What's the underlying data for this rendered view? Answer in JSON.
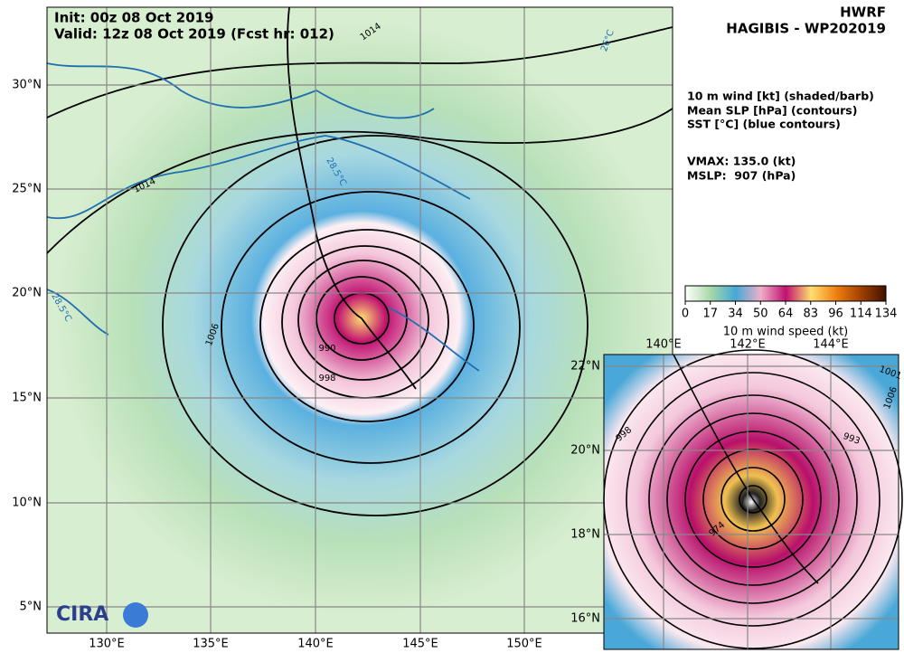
{
  "header": {
    "init": "Init:   00z 08 Oct 2019",
    "valid": "Valid: 12z 08 Oct 2019 (Fcst hr: 012)",
    "model": "HWRF",
    "storm": "HAGIBIS - WP202019"
  },
  "legend": {
    "lines": [
      "10 m wind [kt] (shaded/barb)",
      "Mean SLP [hPa] (contours)",
      "SST [°C] (blue contours)"
    ],
    "vmax": "VMAX: 135.0 (kt)",
    "mslp": "MSLP:  907 (hPa)"
  },
  "colorbar": {
    "ticks": [
      0,
      17,
      34,
      50,
      64,
      83,
      96,
      114,
      134
    ],
    "label": "10 m wind speed (kt)",
    "colors": [
      "#ffffff",
      "#a8d8a8",
      "#44a8d8",
      "#f0b0c8",
      "#c01070",
      "#ffe070",
      "#f08010",
      "#a04000",
      "#401000"
    ]
  },
  "main_map": {
    "lon_labels": [
      "130°E",
      "135°E",
      "140°E",
      "145°E",
      "150°E"
    ],
    "lat_labels": [
      "30°N",
      "25°N",
      "20°N",
      "15°N",
      "10°N",
      "5°N"
    ],
    "contour_labels": [
      "1014",
      "1014",
      "1006",
      "990",
      "998"
    ],
    "sst_labels": [
      "28.5°C",
      "26°C",
      "28.5°C"
    ],
    "logo": "CIRA"
  },
  "inset_map": {
    "lon_labels": [
      "140°E",
      "142°E",
      "144°E"
    ],
    "lat_labels": [
      "22°N",
      "20°N",
      "18°N",
      "16°N"
    ],
    "contour_labels": [
      "998",
      "993",
      "1006",
      "1001",
      "974"
    ]
  }
}
